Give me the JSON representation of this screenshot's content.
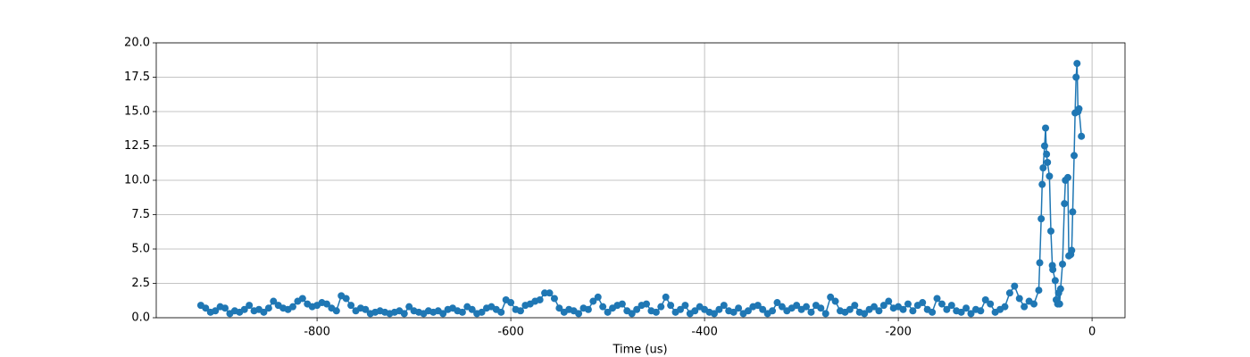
{
  "chart_data": {
    "type": "line",
    "xlabel": "Time (us)",
    "color": "#1f77b4",
    "grid": true,
    "xlim": [
      -966,
      34
    ],
    "xticks": [
      -800,
      -600,
      -400,
      -200,
      0
    ],
    "ylim": [
      0,
      20
    ],
    "yticks": [
      {
        "value": 0,
        "label": "0.0"
      },
      {
        "value": 2.5,
        "label": "2.5"
      },
      {
        "value": 5,
        "label": "5.0"
      },
      {
        "value": 7.5,
        "label": "7.5"
      },
      {
        "value": 10,
        "label": "10.0"
      },
      {
        "value": 12.5,
        "label": "12.5"
      },
      {
        "value": 15,
        "label": "15.0"
      },
      {
        "value": 17.5,
        "label": "17.5"
      },
      {
        "value": 20,
        "label": "20.0"
      }
    ],
    "x": [
      -920,
      -915,
      -910,
      -905,
      -900,
      -895,
      -890,
      -885,
      -880,
      -875,
      -870,
      -865,
      -860,
      -855,
      -850,
      -845,
      -840,
      -835,
      -830,
      -825,
      -820,
      -815,
      -810,
      -805,
      -800,
      -795,
      -790,
      -785,
      -780,
      -775,
      -770,
      -765,
      -760,
      -755,
      -750,
      -745,
      -740,
      -735,
      -730,
      -725,
      -720,
      -715,
      -710,
      -705,
      -700,
      -695,
      -690,
      -685,
      -680,
      -675,
      -670,
      -665,
      -660,
      -655,
      -650,
      -645,
      -640,
      -635,
      -630,
      -625,
      -620,
      -615,
      -610,
      -605,
      -600,
      -595,
      -590,
      -585,
      -580,
      -575,
      -570,
      -565,
      -560,
      -555,
      -550,
      -545,
      -540,
      -535,
      -530,
      -525,
      -520,
      -515,
      -510,
      -505,
      -500,
      -495,
      -490,
      -485,
      -480,
      -475,
      -470,
      -465,
      -460,
      -455,
      -450,
      -445,
      -440,
      -435,
      -430,
      -425,
      -420,
      -415,
      -410,
      -405,
      -400,
      -395,
      -390,
      -385,
      -380,
      -375,
      -370,
      -365,
      -360,
      -355,
      -350,
      -345,
      -340,
      -335,
      -330,
      -325,
      -320,
      -315,
      -310,
      -305,
      -300,
      -295,
      -290,
      -285,
      -280,
      -275,
      -270,
      -265,
      -260,
      -255,
      -250,
      -245,
      -240,
      -235,
      -230,
      -225,
      -220,
      -215,
      -210,
      -205,
      -200,
      -195,
      -190,
      -185,
      -180,
      -175,
      -170,
      -165,
      -160,
      -155,
      -150,
      -145,
      -140,
      -135,
      -130,
      -125,
      -120,
      -115,
      -110,
      -105,
      -100,
      -95,
      -90,
      -85,
      -80,
      -75,
      -70,
      -65,
      -60,
      -55,
      -54,
      -52.5,
      -51.5,
      -50.5,
      -49,
      -48,
      -47,
      -46,
      -44,
      -42.5,
      -41,
      -40.5,
      -38,
      -37,
      -35.5,
      -34.5,
      -33.5,
      -32.5,
      -30.5,
      -28.5,
      -27.5,
      -25,
      -24,
      -22,
      -21,
      -20,
      -18.5,
      -17.5,
      -16.5,
      -15.5,
      -14.5,
      -13.5,
      -11
    ],
    "values": [
      0.9,
      0.7,
      0.4,
      0.5,
      0.8,
      0.7,
      0.3,
      0.5,
      0.4,
      0.6,
      0.9,
      0.5,
      0.6,
      0.4,
      0.7,
      1.2,
      0.9,
      0.7,
      0.6,
      0.8,
      1.2,
      1.4,
      1.0,
      0.8,
      0.9,
      1.1,
      1.0,
      0.7,
      0.5,
      1.6,
      1.4,
      0.9,
      0.5,
      0.7,
      0.6,
      0.3,
      0.4,
      0.5,
      0.4,
      0.3,
      0.4,
      0.5,
      0.3,
      0.8,
      0.5,
      0.4,
      0.3,
      0.5,
      0.4,
      0.5,
      0.3,
      0.6,
      0.7,
      0.5,
      0.4,
      0.8,
      0.6,
      0.3,
      0.4,
      0.7,
      0.8,
      0.6,
      0.4,
      1.3,
      1.1,
      0.6,
      0.5,
      0.9,
      1.0,
      1.2,
      1.3,
      1.8,
      1.8,
      1.4,
      0.7,
      0.4,
      0.6,
      0.5,
      0.3,
      0.7,
      0.6,
      1.2,
      1.5,
      0.8,
      0.4,
      0.7,
      0.9,
      1.0,
      0.5,
      0.3,
      0.6,
      0.9,
      1.0,
      0.5,
      0.4,
      0.8,
      1.5,
      0.9,
      0.4,
      0.6,
      0.9,
      0.3,
      0.5,
      0.8,
      0.6,
      0.4,
      0.3,
      0.6,
      0.9,
      0.5,
      0.4,
      0.7,
      0.3,
      0.5,
      0.8,
      0.9,
      0.6,
      0.3,
      0.5,
      1.1,
      0.8,
      0.5,
      0.7,
      0.9,
      0.6,
      0.8,
      0.4,
      0.9,
      0.7,
      0.3,
      1.5,
      1.2,
      0.5,
      0.4,
      0.6,
      0.9,
      0.4,
      0.3,
      0.6,
      0.8,
      0.5,
      0.9,
      1.2,
      0.7,
      0.8,
      0.6,
      1.0,
      0.5,
      0.9,
      1.1,
      0.6,
      0.4,
      1.4,
      1.0,
      0.6,
      0.9,
      0.5,
      0.4,
      0.7,
      0.3,
      0.6,
      0.5,
      1.3,
      1.0,
      0.4,
      0.6,
      0.8,
      1.8,
      2.3,
      1.4,
      0.8,
      1.2,
      1.0,
      2.0,
      4.0,
      7.2,
      9.7,
      10.9,
      12.5,
      13.8,
      11.9,
      11.3,
      10.3,
      6.3,
      3.8,
      3.5,
      2.7,
      1.3,
      1.0,
      1.8,
      1.0,
      2.1,
      3.9,
      8.3,
      10.0,
      10.2,
      4.5,
      4.6,
      4.9,
      7.7,
      11.8,
      14.9,
      17.5,
      18.5,
      15.0,
      15.2,
      13.2
    ]
  }
}
